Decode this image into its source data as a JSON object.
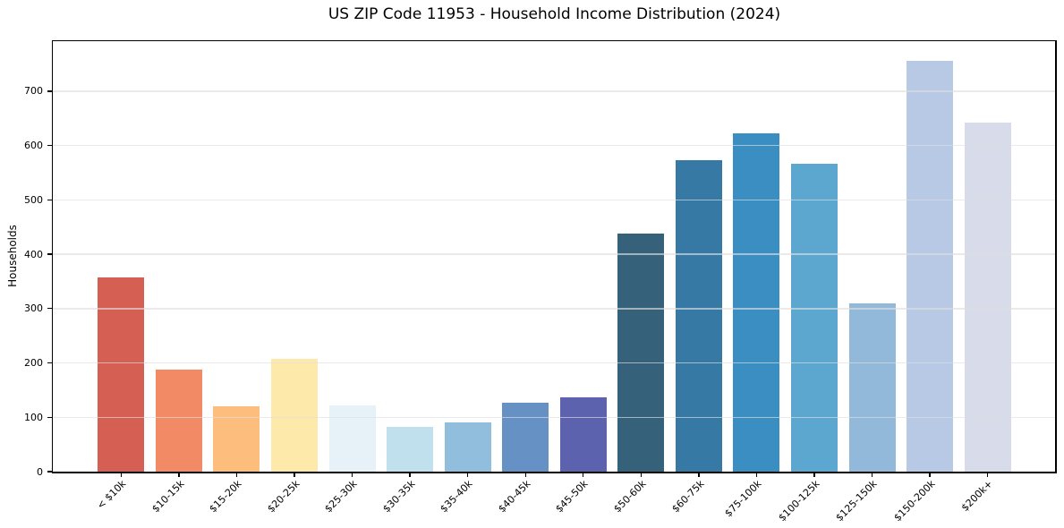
{
  "chart_data": {
    "type": "bar",
    "title": "US ZIP Code 11953 - Household Income Distribution (2024)",
    "xlabel": "",
    "ylabel": "Households",
    "categories": [
      "< $10k",
      "$10-15k",
      "$15-20k",
      "$20-25k",
      "$25-30k",
      "$30-35k",
      "$35-40k",
      "$40-45k",
      "$45-50k",
      "$50-60k",
      "$60-75k",
      "$75-100k",
      "$100-125k",
      "$125-150k",
      "$150-200k",
      "$200k+"
    ],
    "values": [
      357,
      188,
      120,
      208,
      122,
      83,
      90,
      127,
      137,
      438,
      573,
      622,
      566,
      310,
      755,
      642
    ],
    "bar_colors": [
      "#d65f53",
      "#f18a65",
      "#fcbd7d",
      "#fde9a9",
      "#e6f2f8",
      "#c1e0ee",
      "#92bedd",
      "#6691c5",
      "#5d62af",
      "#36617a",
      "#3779a5",
      "#3a8ec2",
      "#5ba7cf",
      "#92b8da",
      "#b7c9e4",
      "#d8dbea"
    ],
    "yticks": [
      0,
      100,
      200,
      300,
      400,
      500,
      600,
      700
    ],
    "ylim": [
      0,
      792
    ],
    "grid": "horizontal",
    "gridline_color": "#e7e7e7",
    "axis_color": "#000000",
    "background": "#ffffff",
    "legend": "none",
    "x_tick_rotation": -45
  }
}
